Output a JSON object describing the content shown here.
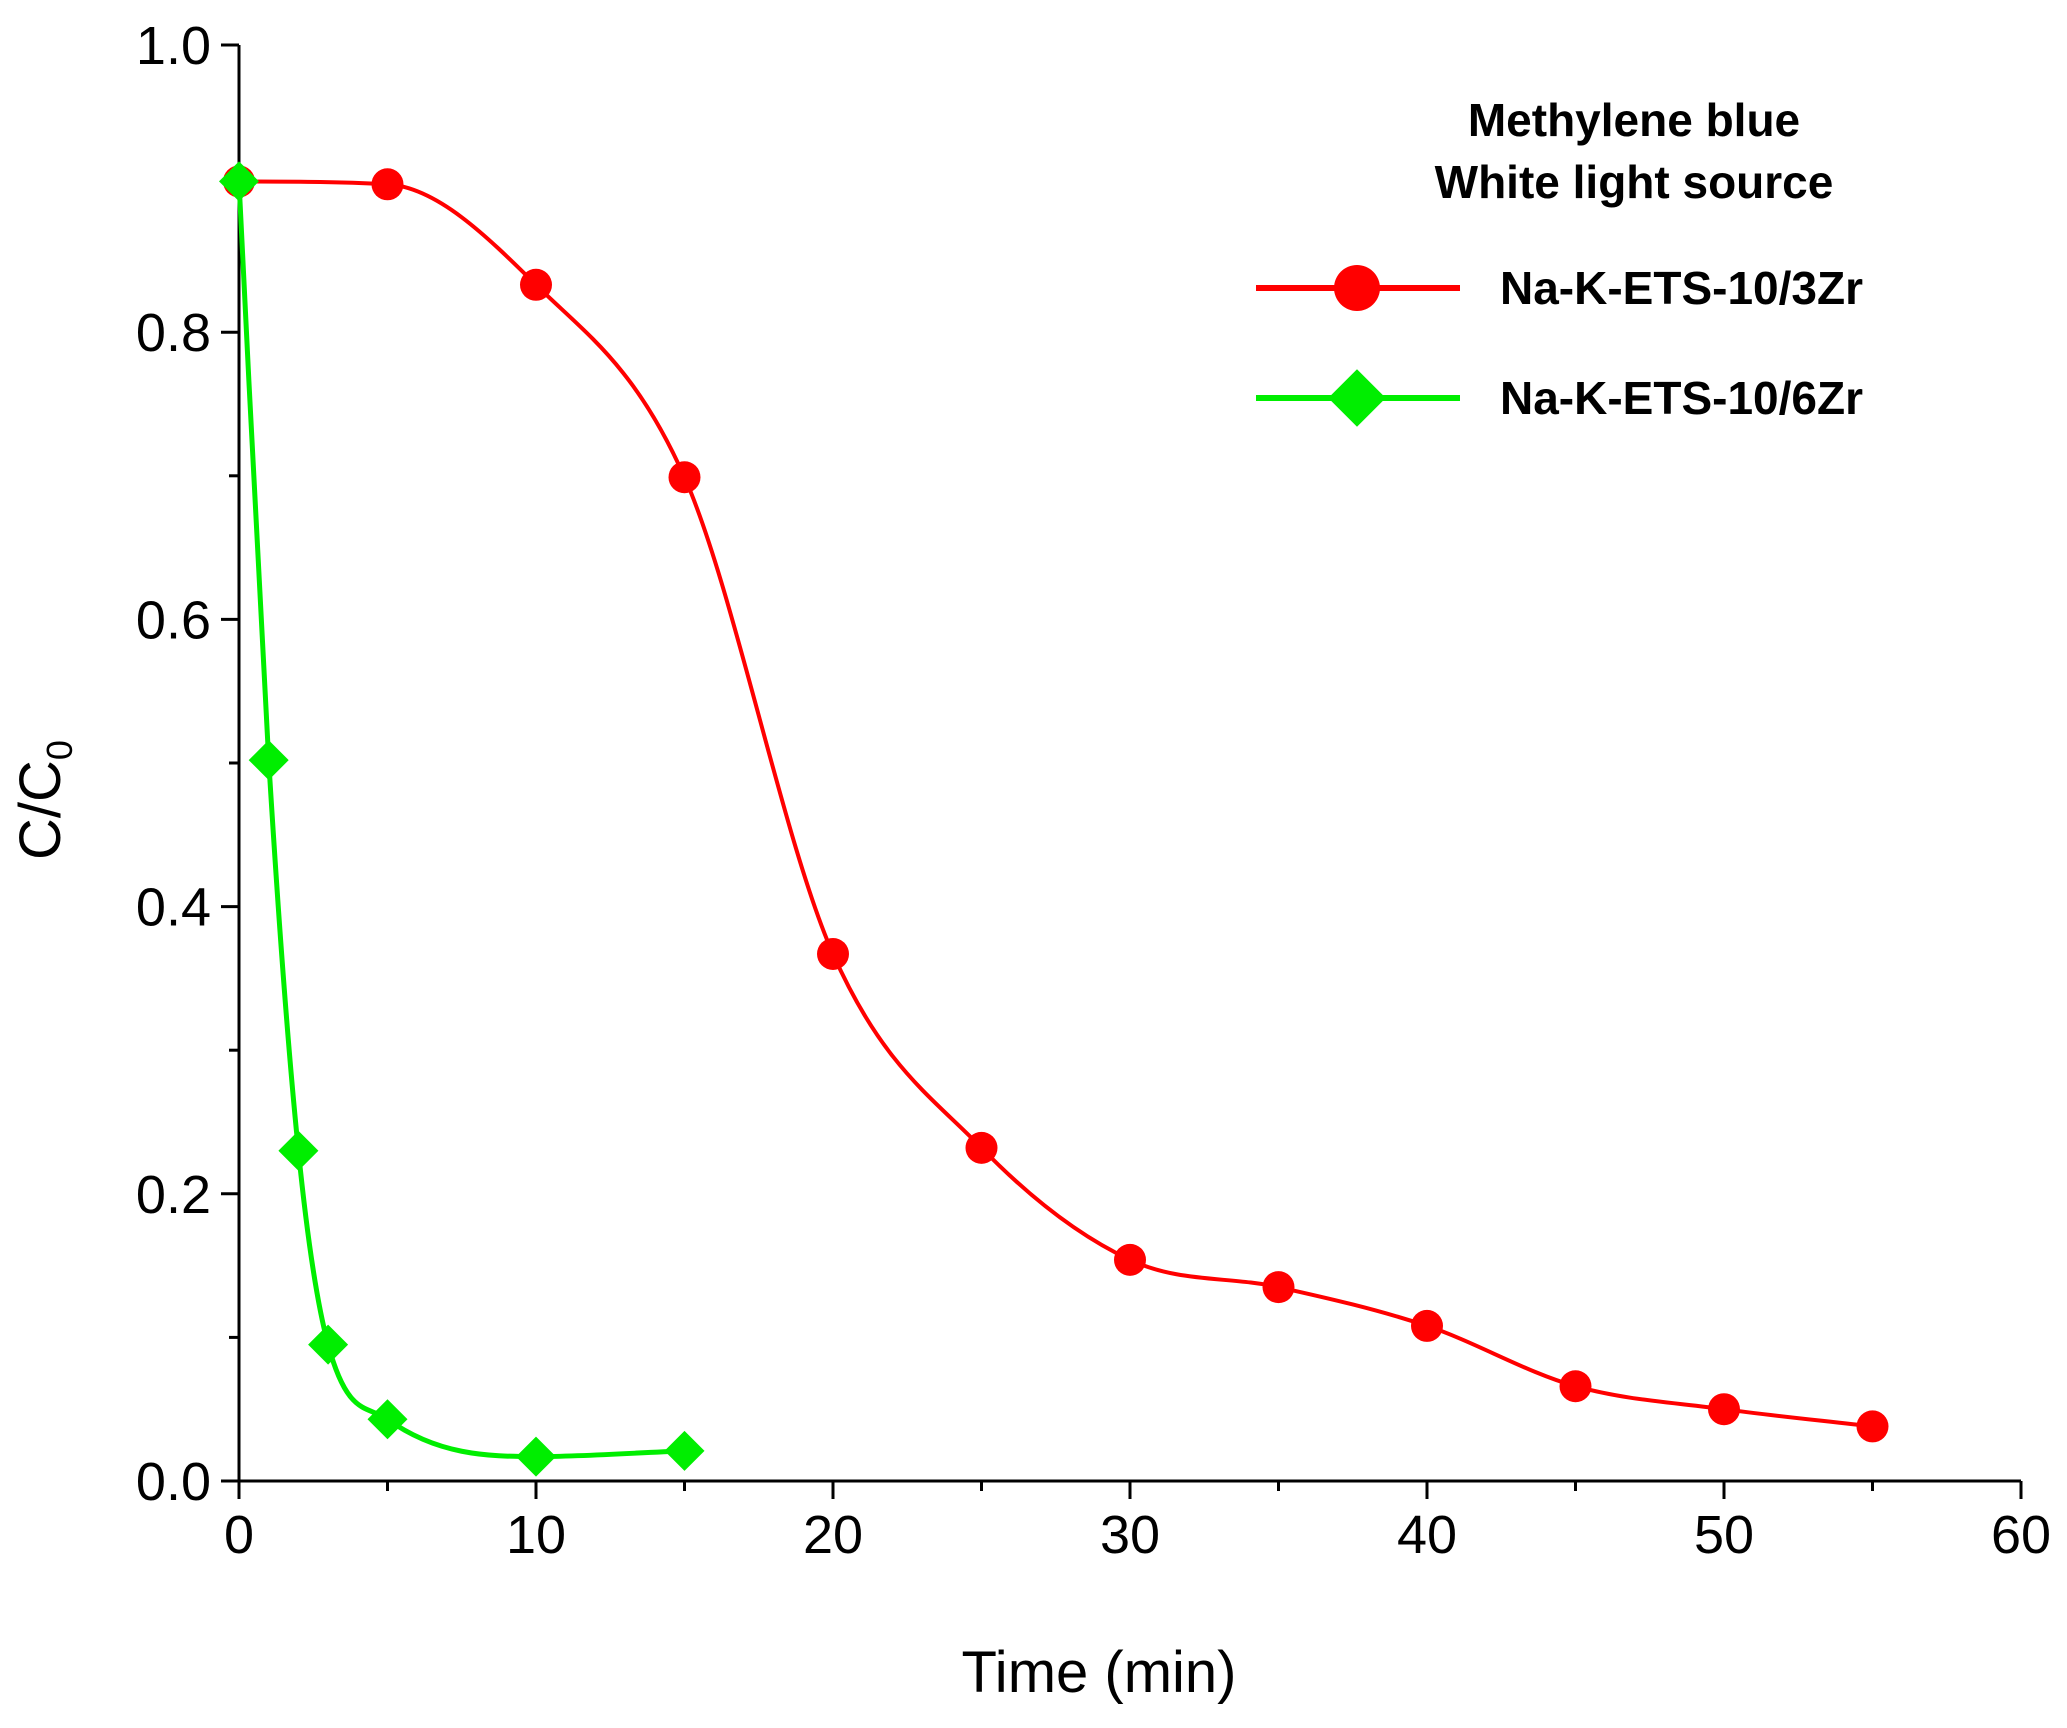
{
  "chart_data": {
    "type": "line",
    "xlabel": "Time (min)",
    "ylabel_main": "C/C",
    "ylabel_sub": "0",
    "xlim": [
      0,
      60
    ],
    "ylim": [
      0.0,
      1.0
    ],
    "xticks": [
      "0",
      "10",
      "20",
      "30",
      "40",
      "50",
      "60"
    ],
    "yticks": [
      "0.0",
      "0.2",
      "0.4",
      "0.6",
      "0.8",
      "1.0"
    ],
    "grid": false,
    "legend_position": "top-right",
    "annotation_line1": "Methylene blue",
    "annotation_line2": "White light source",
    "series": [
      {
        "name": "Na-K-ETS-10/3Zr",
        "color": "#ff0000",
        "marker": "circle",
        "x": [
          0,
          5,
          10,
          15,
          20,
          25,
          30,
          35,
          40,
          45,
          50,
          55
        ],
        "y": [
          0.905,
          0.903,
          0.833,
          0.699,
          0.367,
          0.232,
          0.154,
          0.135,
          0.108,
          0.066,
          0.05,
          0.038
        ]
      },
      {
        "name": "Na-K-ETS-10/6Zr",
        "color": "#00ee00",
        "marker": "diamond",
        "x": [
          0,
          1,
          2,
          3,
          5,
          10,
          15
        ],
        "y": [
          0.905,
          0.502,
          0.23,
          0.095,
          0.043,
          0.017,
          0.021
        ]
      }
    ]
  }
}
